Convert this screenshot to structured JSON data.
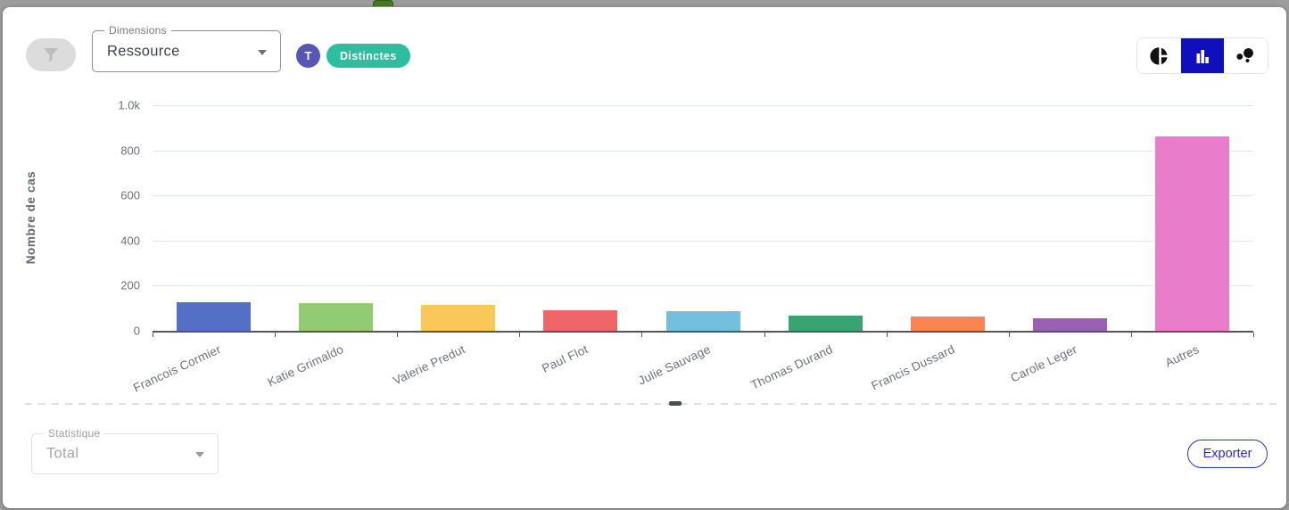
{
  "header": {
    "filter_button": {
      "icon": "funnel-icon",
      "disabled": true
    },
    "dimensions_select": {
      "label": "Dimensions",
      "value": "Ressource"
    },
    "type_badge": "T",
    "distinct_badge": "Distinctes",
    "chart_type_toggle": {
      "options": [
        {
          "name": "pie",
          "icon": "pie-chart-icon",
          "selected": false
        },
        {
          "name": "bar",
          "icon": "bar-chart-icon",
          "selected": true
        },
        {
          "name": "bubble",
          "icon": "bubble-chart-icon",
          "selected": false
        }
      ],
      "selected_bg": "#0f0fbe"
    }
  },
  "chart_data": {
    "type": "bar",
    "title": "",
    "xlabel": "",
    "ylabel": "Nombre de cas",
    "categories": [
      "Francois Cormier",
      "Katie Grimaldo",
      "Valerie Predut",
      "Paul Flot",
      "Julie Sauvage",
      "Thomas Durand",
      "Francis Dussard",
      "Carole Leger",
      "Autres"
    ],
    "values": [
      125,
      121,
      116,
      91,
      86,
      66,
      63,
      54,
      863
    ],
    "bar_colors": [
      "#5470c6",
      "#91cc75",
      "#fac858",
      "#ee6666",
      "#73c0de",
      "#3ba272",
      "#fc8452",
      "#9a60b4",
      "#ea7ccc"
    ],
    "ylim": [
      0,
      1000
    ],
    "yticks": [
      {
        "label": "1.0k",
        "value": 1000
      },
      {
        "label": "800",
        "value": 800
      },
      {
        "label": "600",
        "value": 600
      },
      {
        "label": "400",
        "value": 400
      },
      {
        "label": "200",
        "value": 200
      },
      {
        "label": "0",
        "value": 0
      }
    ],
    "grid": true,
    "legend": "none",
    "x_label_rotation": -25
  },
  "footer": {
    "statistic_select": {
      "label": "Statistique",
      "value": "Total",
      "disabled": true
    },
    "export_button": "Exporter"
  },
  "colors": {
    "selected_chart_type_bg": "#0f0fbe",
    "type_badge_bg": "#5757b3",
    "distinct_badge_bg": "#2cbf9f",
    "export_accent": "#2b2bd5",
    "grid_line": "#e0e6f1",
    "axis_text": "#6e7079",
    "frame_background": "#9c9c9c"
  }
}
